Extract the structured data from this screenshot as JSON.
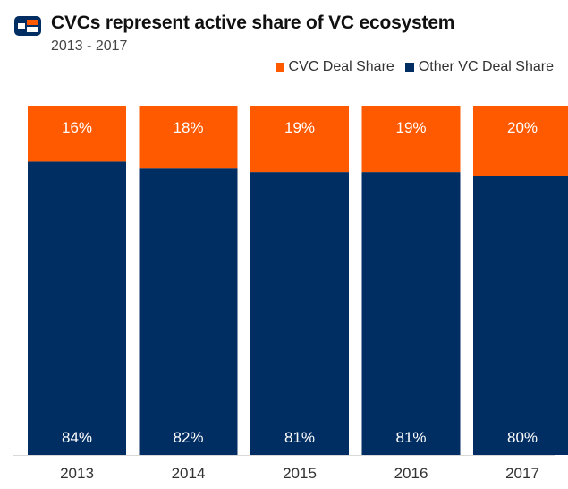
{
  "header": {
    "title": "CVCs represent active share of VC ecosystem",
    "subtitle": "2013 - 2017"
  },
  "legend": {
    "items": [
      {
        "label": "CVC Deal Share",
        "color": "#ff5a00"
      },
      {
        "label": "Other VC Deal Share",
        "color": "#002d62"
      }
    ]
  },
  "logo": {
    "icon": "cb-insights-logo-icon",
    "colors": [
      "#002d62",
      "#ff5a00"
    ]
  },
  "chart_data": {
    "type": "bar",
    "stacked": true,
    "categories": [
      "2013",
      "2014",
      "2015",
      "2016",
      "2017"
    ],
    "series": [
      {
        "name": "Other VC Deal Share",
        "values": [
          84,
          82,
          81,
          81,
          80
        ],
        "labels": [
          "84%",
          "82%",
          "81%",
          "81%",
          "80%"
        ],
        "color": "#002d62"
      },
      {
        "name": "CVC Deal Share",
        "values": [
          16,
          18,
          19,
          19,
          20
        ],
        "labels": [
          "16%",
          "18%",
          "19%",
          "19%",
          "20%"
        ],
        "color": "#ff5a00"
      }
    ],
    "title": "CVCs represent active share of VC ecosystem",
    "xlabel": "",
    "ylabel": "",
    "ylim": [
      0,
      100
    ],
    "grid": false,
    "legend_position": "top-right"
  }
}
